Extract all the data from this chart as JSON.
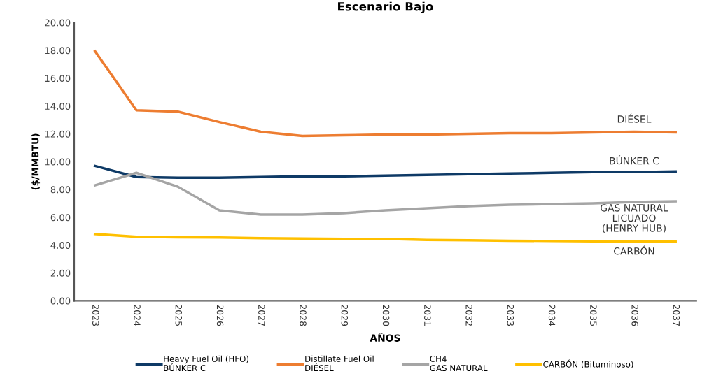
{
  "chart_data": {
    "type": "line",
    "title": "Escenario Bajo",
    "xlabel": "AÑOS",
    "ylabel": "($/MMBTU)",
    "categories": [
      "2023",
      "2024",
      "2025",
      "2026",
      "2027",
      "2028",
      "2029",
      "2030",
      "2031",
      "2032",
      "2033",
      "2034",
      "2035",
      "2036",
      "2037"
    ],
    "series": [
      {
        "name": "Heavy Fuel Oil (HFO)\nBÚNKER C",
        "color": "#0e3a66",
        "values": [
          9.7,
          8.9,
          8.85,
          8.85,
          8.9,
          8.95,
          8.95,
          9.0,
          9.05,
          9.1,
          9.15,
          9.2,
          9.25,
          9.25,
          9.3
        ]
      },
      {
        "name": "Distillate Fuel Oil\nDIÉSEL",
        "color": "#ed7d31",
        "values": [
          17.95,
          13.7,
          13.6,
          12.85,
          12.15,
          11.85,
          11.9,
          11.95,
          11.95,
          12.0,
          12.05,
          12.05,
          12.1,
          12.15,
          12.1
        ]
      },
      {
        "name": "CH4\nGAS NATURAL",
        "color": "#a5a5a5",
        "values": [
          8.3,
          9.2,
          8.2,
          6.5,
          6.2,
          6.2,
          6.3,
          6.5,
          6.65,
          6.8,
          6.9,
          6.95,
          7.0,
          7.1,
          7.15
        ]
      },
      {
        "name": "CARBÓN (Bituminoso)",
        "color": "#ffc000",
        "values": [
          4.8,
          4.6,
          4.57,
          4.55,
          4.5,
          4.48,
          4.45,
          4.45,
          4.38,
          4.35,
          4.32,
          4.3,
          4.28,
          4.25,
          4.28
        ]
      }
    ],
    "annotations": [
      "DIÉSEL",
      "BÚNKER C",
      "GAS NATURAL\nLICUADO\n(HENRY HUB)",
      "CARBÓN"
    ],
    "ylim": [
      0,
      20
    ],
    "yticks": [
      {
        "value": 0,
        "label": "0.00"
      },
      {
        "value": 2,
        "label": "2.00"
      },
      {
        "value": 4,
        "label": "4.00"
      },
      {
        "value": 6,
        "label": "6.00"
      },
      {
        "value": 8,
        "label": "8.00"
      },
      {
        "value": 10,
        "label": "10.00"
      },
      {
        "value": 12,
        "label": "12.00"
      },
      {
        "value": 14,
        "label": "14.00"
      },
      {
        "value": 16,
        "label": "16.00"
      },
      {
        "value": 18,
        "label": "18.00"
      },
      {
        "value": 20,
        "label": "20.00"
      }
    ],
    "grid": false,
    "legend": "bottom",
    "marker": "none",
    "line_style": "solid"
  }
}
